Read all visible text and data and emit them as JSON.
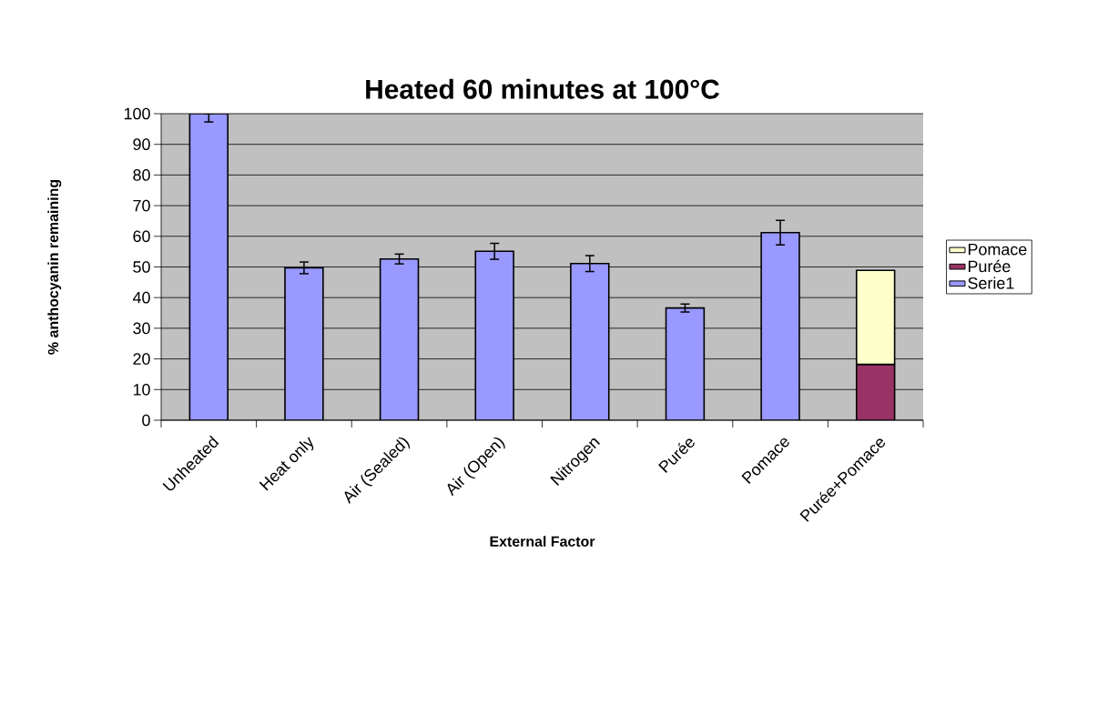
{
  "chart_data": {
    "type": "bar",
    "title": "Heated 60 minutes at 100°C",
    "xlabel": "External Factor",
    "ylabel": "% anthocyanin remaining",
    "categories": [
      "Unheated",
      "Heat only",
      "Air (Sealed)",
      "Air (Open)",
      "Nitrogen",
      "Purée",
      "Pomace",
      "Purée+Pomace"
    ],
    "stacked": true,
    "series": [
      {
        "name": "Serie1",
        "color": "#9999ff",
        "values": [
          100,
          49.7,
          52.6,
          55.1,
          51.1,
          36.6,
          61.2,
          null
        ],
        "errors": [
          [
            97.3,
            100
          ],
          1.9,
          1.6,
          2.6,
          2.6,
          1.3,
          4,
          null
        ]
      },
      {
        "name": "Purée",
        "color": "#993366",
        "values": [
          null,
          null,
          null,
          null,
          null,
          null,
          null,
          18.2
        ]
      },
      {
        "name": "Pomace",
        "color": "#ffffcc",
        "values": [
          null,
          null,
          null,
          null,
          null,
          null,
          null,
          30.7
        ]
      }
    ],
    "ylim": [
      0,
      100
    ],
    "yticks": [
      0,
      10,
      20,
      30,
      40,
      50,
      60,
      70,
      80,
      90,
      100
    ],
    "grid": "y",
    "legend": "right"
  }
}
